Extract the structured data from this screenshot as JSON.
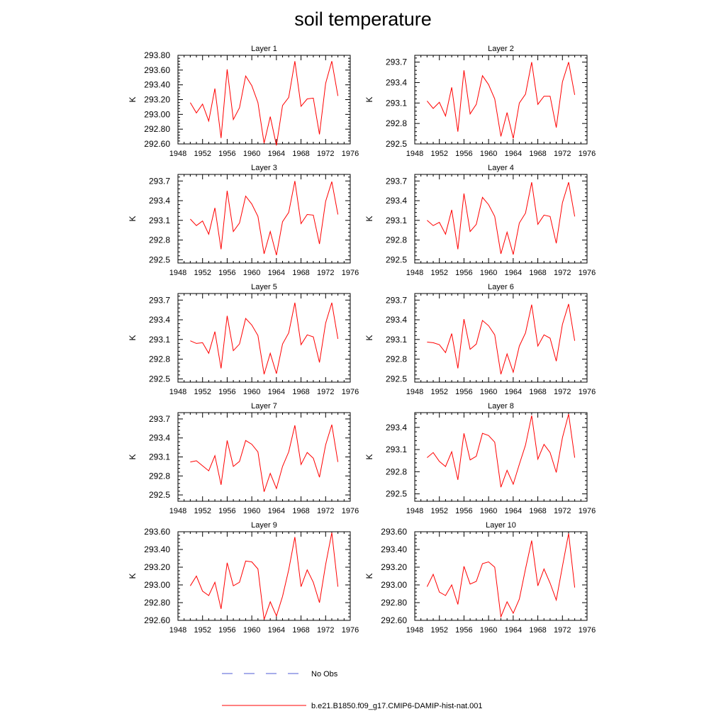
{
  "title": "soil temperature",
  "colors": {
    "series": "#ff0000",
    "noobs": "#4f5bd5",
    "axis": "#000000"
  },
  "legend": [
    {
      "label": "No Obs",
      "style": "dashed",
      "color": "#4f5bd5"
    },
    {
      "label": "b.e21.B1850.f09_g17.CMIP6-DAMIP-hist-nat.001",
      "style": "solid",
      "color": "#ff0000"
    }
  ],
  "chart_data": [
    {
      "type": "line",
      "title": "Layer 1",
      "ylabel": "K",
      "xlim": [
        1948,
        1976
      ],
      "xticks": [
        1948,
        1952,
        1956,
        1960,
        1964,
        1968,
        1972,
        1976
      ],
      "ylim": [
        292.6,
        293.8
      ],
      "yticks": [
        "292.60",
        "292.80",
        "293.00",
        "293.20",
        "293.40",
        "293.60",
        "293.80"
      ],
      "x": [
        1950,
        1951,
        1952,
        1953,
        1954,
        1955,
        1956,
        1957,
        1958,
        1959,
        1960,
        1961,
        1962,
        1963,
        1964,
        1965,
        1966,
        1967,
        1968,
        1969,
        1970,
        1971,
        1972,
        1973,
        1974
      ],
      "series": [
        {
          "values": [
            293.16,
            293.02,
            293.14,
            292.91,
            293.35,
            292.68,
            293.61,
            292.93,
            293.09,
            293.52,
            293.39,
            293.16,
            292.61,
            292.97,
            292.58,
            293.12,
            293.23,
            293.72,
            293.11,
            293.21,
            293.22,
            292.73,
            293.42,
            293.72,
            293.25
          ]
        }
      ]
    },
    {
      "type": "line",
      "title": "Layer 2",
      "ylabel": "K",
      "xlim": [
        1948,
        1976
      ],
      "xticks": [
        1948,
        1952,
        1956,
        1960,
        1964,
        1968,
        1972,
        1976
      ],
      "ylim": [
        292.5,
        293.8
      ],
      "yticks": [
        "292.5",
        "292.8",
        "293.1",
        "293.4",
        "293.7"
      ],
      "x": [
        1950,
        1951,
        1952,
        1953,
        1954,
        1955,
        1956,
        1957,
        1958,
        1959,
        1960,
        1961,
        1962,
        1963,
        1964,
        1965,
        1966,
        1967,
        1968,
        1969,
        1970,
        1971,
        1972,
        1973,
        1974
      ],
      "series": [
        {
          "values": [
            293.13,
            293.02,
            293.11,
            292.91,
            293.33,
            292.68,
            293.58,
            292.94,
            293.08,
            293.5,
            293.37,
            293.16,
            292.61,
            292.96,
            292.58,
            293.1,
            293.23,
            293.7,
            293.08,
            293.2,
            293.2,
            292.74,
            293.41,
            293.7,
            293.22
          ]
        }
      ]
    },
    {
      "type": "line",
      "title": "Layer 3",
      "ylabel": "K",
      "xlim": [
        1948,
        1976
      ],
      "xticks": [
        1948,
        1952,
        1956,
        1960,
        1964,
        1968,
        1972,
        1976
      ],
      "ylim": [
        292.45,
        293.8
      ],
      "yticks": [
        "292.5",
        "292.8",
        "293.1",
        "293.4",
        "293.7"
      ],
      "x": [
        1950,
        1951,
        1952,
        1953,
        1954,
        1955,
        1956,
        1957,
        1958,
        1959,
        1960,
        1961,
        1962,
        1963,
        1964,
        1965,
        1966,
        1967,
        1968,
        1969,
        1970,
        1971,
        1972,
        1973,
        1974
      ],
      "series": [
        {
          "values": [
            293.12,
            293.02,
            293.09,
            292.89,
            293.29,
            292.66,
            293.55,
            292.93,
            293.06,
            293.47,
            293.35,
            293.16,
            292.59,
            292.93,
            292.57,
            293.08,
            293.22,
            293.7,
            293.05,
            293.19,
            293.18,
            292.74,
            293.39,
            293.69,
            293.19
          ]
        }
      ]
    },
    {
      "type": "line",
      "title": "Layer 4",
      "ylabel": "K",
      "xlim": [
        1948,
        1976
      ],
      "xticks": [
        1948,
        1952,
        1956,
        1960,
        1964,
        1968,
        1972,
        1976
      ],
      "ylim": [
        292.45,
        293.8
      ],
      "yticks": [
        "292.5",
        "292.8",
        "293.1",
        "293.4",
        "293.7"
      ],
      "x": [
        1950,
        1951,
        1952,
        1953,
        1954,
        1955,
        1956,
        1957,
        1958,
        1959,
        1960,
        1961,
        1962,
        1963,
        1964,
        1965,
        1966,
        1967,
        1968,
        1969,
        1970,
        1971,
        1972,
        1973,
        1974
      ],
      "series": [
        {
          "values": [
            293.1,
            293.02,
            293.07,
            292.89,
            293.26,
            292.66,
            293.51,
            292.93,
            293.04,
            293.45,
            293.34,
            293.16,
            292.59,
            292.92,
            292.58,
            293.06,
            293.21,
            293.68,
            293.04,
            293.18,
            293.16,
            292.75,
            293.37,
            293.68,
            293.16
          ]
        }
      ]
    },
    {
      "type": "line",
      "title": "Layer 5",
      "ylabel": "K",
      "xlim": [
        1948,
        1976
      ],
      "xticks": [
        1948,
        1952,
        1956,
        1960,
        1964,
        1968,
        1972,
        1976
      ],
      "ylim": [
        292.45,
        293.8
      ],
      "yticks": [
        "292.5",
        "292.8",
        "293.1",
        "293.4",
        "293.7"
      ],
      "x": [
        1950,
        1951,
        1952,
        1953,
        1954,
        1955,
        1956,
        1957,
        1958,
        1959,
        1960,
        1961,
        1962,
        1963,
        1964,
        1965,
        1966,
        1967,
        1968,
        1969,
        1970,
        1971,
        1972,
        1973,
        1974
      ],
      "series": [
        {
          "values": [
            293.08,
            293.04,
            293.05,
            292.89,
            293.22,
            292.66,
            293.46,
            292.93,
            293.03,
            293.42,
            293.32,
            293.16,
            292.57,
            292.89,
            292.58,
            293.03,
            293.2,
            293.66,
            293.02,
            293.17,
            293.14,
            292.75,
            293.35,
            293.66,
            293.11
          ]
        }
      ]
    },
    {
      "type": "line",
      "title": "Layer 6",
      "ylabel": "K",
      "xlim": [
        1948,
        1976
      ],
      "xticks": [
        1948,
        1952,
        1956,
        1960,
        1964,
        1968,
        1972,
        1976
      ],
      "ylim": [
        292.45,
        293.8
      ],
      "yticks": [
        "292.5",
        "292.8",
        "293.1",
        "293.4",
        "293.7"
      ],
      "x": [
        1950,
        1951,
        1952,
        1953,
        1954,
        1955,
        1956,
        1957,
        1958,
        1959,
        1960,
        1961,
        1962,
        1963,
        1964,
        1965,
        1966,
        1967,
        1968,
        1969,
        1970,
        1971,
        1972,
        1973,
        1974
      ],
      "series": [
        {
          "values": [
            293.06,
            293.05,
            293.02,
            292.9,
            293.19,
            292.66,
            293.41,
            292.95,
            293.03,
            293.39,
            293.31,
            293.17,
            292.57,
            292.88,
            292.6,
            293.0,
            293.2,
            293.63,
            293.0,
            293.17,
            293.12,
            292.77,
            293.33,
            293.64,
            293.08
          ]
        }
      ]
    },
    {
      "type": "line",
      "title": "Layer 7",
      "ylabel": "K",
      "xlim": [
        1948,
        1976
      ],
      "xticks": [
        1948,
        1952,
        1956,
        1960,
        1964,
        1968,
        1972,
        1976
      ],
      "ylim": [
        292.4,
        293.8
      ],
      "yticks": [
        "292.5",
        "292.8",
        "293.1",
        "293.4",
        "293.7"
      ],
      "x": [
        1950,
        1951,
        1952,
        1953,
        1954,
        1955,
        1956,
        1957,
        1958,
        1959,
        1960,
        1961,
        1962,
        1963,
        1964,
        1965,
        1966,
        1967,
        1968,
        1969,
        1970,
        1971,
        1972,
        1973,
        1974
      ],
      "series": [
        {
          "values": [
            293.02,
            293.04,
            292.96,
            292.88,
            293.12,
            292.66,
            293.36,
            292.95,
            293.03,
            293.36,
            293.3,
            293.18,
            292.55,
            292.84,
            292.6,
            292.95,
            293.18,
            293.6,
            292.98,
            293.17,
            293.08,
            292.78,
            293.29,
            293.61,
            293.02
          ]
        }
      ]
    },
    {
      "type": "line",
      "title": "Layer 8",
      "ylabel": "K",
      "xlim": [
        1948,
        1976
      ],
      "xticks": [
        1948,
        1952,
        1956,
        1960,
        1964,
        1968,
        1972,
        1976
      ],
      "ylim": [
        292.4,
        293.6
      ],
      "yticks": [
        "292.5",
        "292.8",
        "293.1",
        "293.4"
      ],
      "x": [
        1950,
        1951,
        1952,
        1953,
        1954,
        1955,
        1956,
        1957,
        1958,
        1959,
        1960,
        1961,
        1962,
        1963,
        1964,
        1965,
        1966,
        1967,
        1968,
        1969,
        1970,
        1971,
        1972,
        1973,
        1974
      ],
      "series": [
        {
          "values": [
            292.99,
            293.06,
            292.94,
            292.87,
            293.07,
            292.69,
            293.32,
            292.96,
            293.01,
            293.32,
            293.29,
            293.2,
            292.59,
            292.82,
            292.63,
            292.9,
            293.16,
            293.56,
            292.97,
            293.17,
            293.06,
            292.79,
            293.26,
            293.58,
            292.99
          ]
        }
      ]
    },
    {
      "type": "line",
      "title": "Layer 9",
      "ylabel": "K",
      "xlim": [
        1948,
        1976
      ],
      "xticks": [
        1948,
        1952,
        1956,
        1960,
        1964,
        1968,
        1972,
        1976
      ],
      "ylim": [
        292.6,
        293.6
      ],
      "yticks": [
        "292.60",
        "292.80",
        "293.00",
        "293.20",
        "293.40",
        "293.60"
      ],
      "x": [
        1950,
        1951,
        1952,
        1953,
        1954,
        1955,
        1956,
        1957,
        1958,
        1959,
        1960,
        1961,
        1962,
        1963,
        1964,
        1965,
        1966,
        1967,
        1968,
        1969,
        1970,
        1971,
        1972,
        1973,
        1974
      ],
      "series": [
        {
          "values": [
            292.99,
            293.1,
            292.93,
            292.88,
            293.03,
            292.73,
            293.25,
            292.99,
            293.03,
            293.27,
            293.26,
            293.18,
            292.61,
            292.81,
            292.65,
            292.87,
            293.17,
            293.54,
            292.98,
            293.17,
            293.03,
            292.8,
            293.23,
            293.59,
            292.98
          ]
        }
      ]
    },
    {
      "type": "line",
      "title": "Layer 10",
      "ylabel": "K",
      "xlim": [
        1948,
        1976
      ],
      "xticks": [
        1948,
        1952,
        1956,
        1960,
        1964,
        1968,
        1972,
        1976
      ],
      "ylim": [
        292.6,
        293.6
      ],
      "yticks": [
        "292.60",
        "292.80",
        "293.00",
        "293.20",
        "293.40",
        "293.60"
      ],
      "x": [
        1950,
        1951,
        1952,
        1953,
        1954,
        1955,
        1956,
        1957,
        1958,
        1959,
        1960,
        1961,
        1962,
        1963,
        1964,
        1965,
        1966,
        1967,
        1968,
        1969,
        1970,
        1971,
        1972,
        1973,
        1974
      ],
      "series": [
        {
          "values": [
            292.98,
            293.12,
            292.92,
            292.88,
            293.0,
            292.78,
            293.21,
            293.01,
            293.04,
            293.24,
            293.26,
            293.2,
            292.64,
            292.81,
            292.68,
            292.84,
            293.18,
            293.5,
            292.99,
            293.18,
            293.02,
            292.83,
            293.21,
            293.58,
            292.97
          ]
        }
      ]
    }
  ]
}
